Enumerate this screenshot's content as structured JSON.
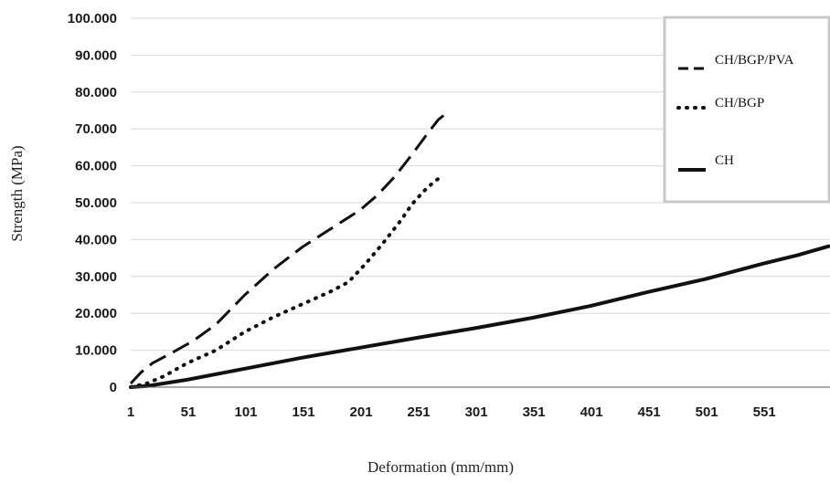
{
  "chart_data": {
    "type": "line",
    "title": "",
    "xlabel": "Deformation (mm/mm)",
    "ylabel": "Strength (MPa)",
    "xlim": [
      1,
      608
    ],
    "ylim": [
      0,
      100
    ],
    "x_ticks": [
      1,
      51,
      101,
      151,
      201,
      251,
      301,
      351,
      401,
      451,
      501,
      551
    ],
    "x_tick_labels": [
      "1",
      "51",
      "101",
      "151",
      "201",
      "251",
      "301",
      "351",
      "401",
      "451",
      "501",
      "551"
    ],
    "y_ticks": [
      0,
      10,
      20,
      30,
      40,
      50,
      60,
      70,
      80,
      90,
      100
    ],
    "y_tick_labels": [
      "0",
      "10.000",
      "20.000",
      "30.000",
      "40.000",
      "50.000",
      "60.000",
      "70.000",
      "80.000",
      "90.000",
      "100.000"
    ],
    "grid": "horizontal",
    "legend_position": "top-right",
    "series": [
      {
        "name": "CH/BGP/PVA",
        "style": "dashed",
        "x": [
          1,
          10,
          20,
          35,
          55,
          75,
          100,
          125,
          150,
          175,
          200,
          215,
          230,
          245,
          258,
          268,
          276
        ],
        "y": [
          1,
          4,
          6.5,
          9,
          12.5,
          17,
          25,
          32,
          38,
          43,
          48,
          52,
          57,
          63,
          68.5,
          72.5,
          74.5
        ]
      },
      {
        "name": "CH/BGP",
        "style": "dotted",
        "x": [
          1,
          15,
          30,
          50,
          75,
          100,
          125,
          150,
          175,
          190,
          205,
          220,
          235,
          245,
          255,
          262,
          268
        ],
        "y": [
          0,
          1,
          3,
          6.5,
          10,
          15,
          19,
          22.5,
          26,
          28.5,
          33.5,
          39,
          45,
          49.5,
          53,
          55,
          56.5
        ]
      },
      {
        "name": "CH",
        "style": "solid",
        "x": [
          1,
          15,
          50,
          100,
          150,
          200,
          250,
          300,
          350,
          400,
          450,
          500,
          550,
          580,
          608
        ],
        "y": [
          0,
          0.3,
          2,
          5,
          8,
          10.7,
          13.4,
          16,
          18.8,
          22,
          25.8,
          29.3,
          33.5,
          35.8,
          38.3
        ]
      }
    ]
  }
}
